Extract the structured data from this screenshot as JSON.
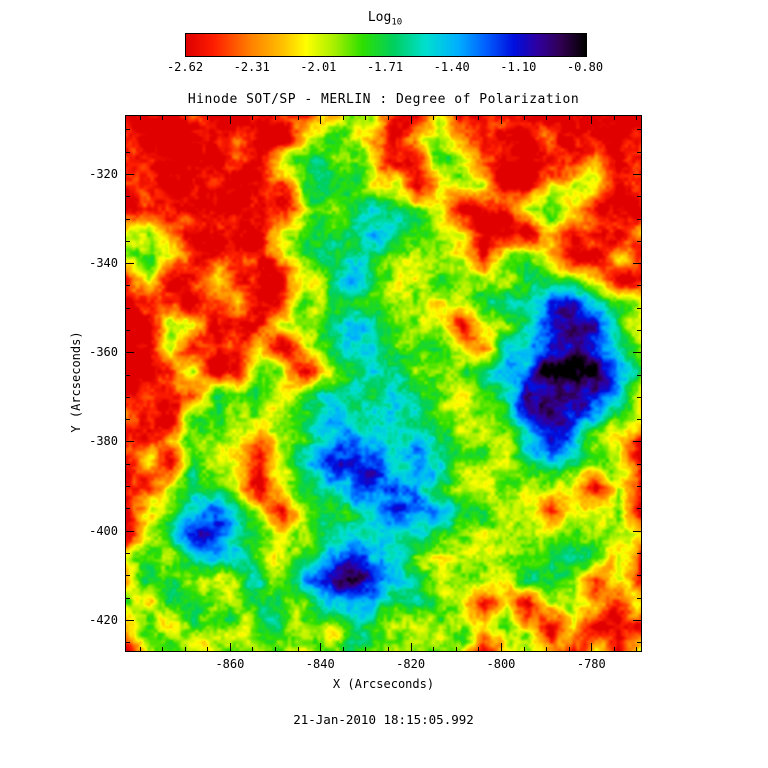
{
  "chart_data": {
    "type": "heatmap",
    "title": "Hinode SOT/SP - MERLIN : Degree of Polarization",
    "xlabel": "X (Arcseconds)",
    "ylabel": "Y (Arcseconds)",
    "timestamp": "21-Jan-2010 18:15:05.992",
    "colorbar": {
      "title_main": "Log",
      "title_sub": "10",
      "min": -2.62,
      "max": -0.8,
      "tick_labels": [
        "-2.62",
        "-2.31",
        "-2.01",
        "-1.71",
        "-1.40",
        "-1.10",
        "-0.80"
      ]
    },
    "x_range": [
      -883,
      -769
    ],
    "y_range": [
      -307,
      -427
    ],
    "x_ticks": [
      -860,
      -840,
      -820,
      -800,
      -780
    ],
    "y_ticks": [
      -320,
      -340,
      -360,
      -380,
      -400,
      -420
    ],
    "minor_tick_step": 5,
    "grid_on": false,
    "colormap_stops": [
      [
        0.0,
        "#e00000"
      ],
      [
        0.07,
        "#ff2000"
      ],
      [
        0.16,
        "#ff8000"
      ],
      [
        0.24,
        "#ffc000"
      ],
      [
        0.3,
        "#ffff00"
      ],
      [
        0.37,
        "#a8f000"
      ],
      [
        0.44,
        "#30e000"
      ],
      [
        0.52,
        "#00d060"
      ],
      [
        0.6,
        "#00e0d0"
      ],
      [
        0.68,
        "#00b0ff"
      ],
      [
        0.75,
        "#0060ff"
      ],
      [
        0.82,
        "#0010e0"
      ],
      [
        0.88,
        "#3000a0"
      ],
      [
        0.94,
        "#300050"
      ],
      [
        1.0,
        "#000000"
      ]
    ],
    "values_log10": [
      [
        -2.58,
        -2.58,
        -2.58,
        -2.58,
        -2.58,
        -2.58,
        -2.58,
        -2.58,
        -2.58,
        -2.05,
        -1.85,
        -2.05,
        -2.58,
        -2.58,
        -2.05,
        -2.58,
        -2.58,
        -2.58,
        -2.58,
        -2.58,
        -2.58,
        -2.58,
        -2.58,
        -2.58
      ],
      [
        -2.58,
        -2.58,
        -2.58,
        -2.58,
        -2.58,
        -2.25,
        -2.58,
        -2.58,
        -2.05,
        -1.85,
        -1.85,
        -2.05,
        -2.58,
        -2.05,
        -1.85,
        -2.05,
        -2.58,
        -2.58,
        -2.58,
        -2.58,
        -2.58,
        -2.58,
        -2.58,
        -2.58
      ],
      [
        -2.58,
        -2.58,
        -2.58,
        -2.58,
        -2.58,
        -2.58,
        -2.58,
        -2.05,
        -1.85,
        -1.65,
        -1.85,
        -2.05,
        -2.58,
        -2.58,
        -1.85,
        -1.85,
        -2.58,
        -2.58,
        -2.58,
        -2.58,
        -2.58,
        -2.05,
        -2.58,
        -2.58
      ],
      [
        -2.58,
        -2.58,
        -2.58,
        -2.58,
        -2.58,
        -2.58,
        -2.58,
        -2.58,
        -1.85,
        -1.65,
        -1.85,
        -2.05,
        -2.05,
        -2.58,
        -2.05,
        -1.85,
        -2.05,
        -2.58,
        -2.58,
        -2.05,
        -1.85,
        -2.05,
        -2.58,
        -2.58
      ],
      [
        -2.58,
        -2.58,
        -2.58,
        -2.58,
        -2.58,
        -2.58,
        -2.58,
        -2.58,
        -2.05,
        -1.85,
        -1.65,
        -1.45,
        -1.65,
        -1.85,
        -2.05,
        -2.58,
        -2.58,
        -2.58,
        -2.05,
        -1.85,
        -2.05,
        -2.58,
        -2.58,
        -2.58
      ],
      [
        -2.05,
        -1.85,
        -2.58,
        -2.58,
        -2.58,
        -2.58,
        -2.58,
        -2.05,
        -1.85,
        -1.85,
        -1.65,
        -1.45,
        -1.65,
        -1.85,
        -1.85,
        -2.05,
        -2.58,
        -2.58,
        -2.58,
        -2.05,
        -2.58,
        -2.58,
        -2.58,
        -2.05
      ],
      [
        -1.85,
        -1.85,
        -2.05,
        -2.58,
        -2.58,
        -2.58,
        -2.58,
        -2.05,
        -1.85,
        -1.65,
        -1.65,
        -1.65,
        -1.85,
        -1.85,
        -1.85,
        -2.05,
        -2.58,
        -2.05,
        -1.85,
        -2.05,
        -2.58,
        -2.58,
        -2.05,
        -2.58
      ],
      [
        -2.58,
        -2.05,
        -2.58,
        -2.58,
        -2.05,
        -2.58,
        -2.58,
        -2.58,
        -2.05,
        -1.85,
        -1.45,
        -1.65,
        -1.85,
        -2.05,
        -1.85,
        -1.85,
        -2.05,
        -1.85,
        -1.65,
        -1.65,
        -1.85,
        -2.05,
        -2.58,
        -2.58
      ],
      [
        -2.58,
        -2.58,
        -2.58,
        -2.58,
        -2.58,
        -2.05,
        -2.58,
        -2.58,
        -1.85,
        -1.85,
        -1.65,
        -1.85,
        -2.05,
        -1.85,
        -2.05,
        -2.05,
        -1.85,
        -1.65,
        -1.45,
        -1.15,
        -1.15,
        -1.45,
        -1.85,
        -2.05
      ],
      [
        -2.58,
        -2.58,
        -2.05,
        -2.05,
        -2.58,
        -2.58,
        -2.58,
        -2.05,
        -1.85,
        -1.65,
        -1.45,
        -1.65,
        -1.85,
        -1.85,
        -2.05,
        -2.58,
        -2.05,
        -1.85,
        -1.45,
        -1.15,
        -0.95,
        -1.15,
        -1.65,
        -2.05
      ],
      [
        -2.58,
        -2.58,
        -2.05,
        -2.58,
        -2.58,
        -2.58,
        -2.05,
        -2.58,
        -2.05,
        -1.65,
        -1.45,
        -1.45,
        -1.65,
        -1.85,
        -1.85,
        -2.05,
        -2.58,
        -1.65,
        -1.45,
        -0.95,
        -0.85,
        -1.15,
        -1.45,
        -1.85
      ],
      [
        -2.58,
        -2.58,
        -2.58,
        -2.05,
        -2.58,
        -2.58,
        -1.85,
        -2.05,
        -2.58,
        -2.05,
        -1.65,
        -1.45,
        -1.65,
        -1.85,
        -2.05,
        -1.85,
        -1.65,
        -1.45,
        -1.15,
        -0.85,
        -0.85,
        -0.95,
        -1.45,
        -1.85
      ],
      [
        -2.58,
        -2.58,
        -2.58,
        -2.58,
        -1.85,
        -2.05,
        -1.85,
        -2.05,
        -1.65,
        -1.45,
        -1.65,
        -1.65,
        -1.45,
        -1.65,
        -1.85,
        -2.05,
        -1.85,
        -1.65,
        -0.95,
        -0.85,
        -0.95,
        -1.15,
        -1.45,
        -2.05
      ],
      [
        -2.58,
        -2.58,
        -2.58,
        -1.85,
        -1.85,
        -2.05,
        -2.05,
        -1.85,
        -1.65,
        -1.45,
        -1.45,
        -1.65,
        -1.45,
        -1.65,
        -1.85,
        -1.85,
        -2.05,
        -1.65,
        -1.15,
        -0.95,
        -1.15,
        -1.45,
        -1.85,
        -2.05
      ],
      [
        -2.58,
        -2.58,
        -2.05,
        -1.85,
        -1.85,
        -2.05,
        -2.58,
        -2.05,
        -1.85,
        -1.45,
        -1.15,
        -1.45,
        -1.65,
        -1.45,
        -1.65,
        -1.85,
        -2.05,
        -1.85,
        -1.45,
        -1.15,
        -1.45,
        -1.85,
        -2.05,
        -2.58
      ],
      [
        -2.58,
        -2.05,
        -2.58,
        -1.85,
        -1.85,
        -2.05,
        -2.58,
        -2.05,
        -1.45,
        -1.15,
        -1.15,
        -1.15,
        -1.45,
        -1.45,
        -1.65,
        -1.85,
        -1.85,
        -2.05,
        -1.65,
        -1.45,
        -1.65,
        -1.85,
        -2.05,
        -2.58
      ],
      [
        -2.58,
        -2.58,
        -2.05,
        -1.65,
        -1.65,
        -2.05,
        -2.58,
        -2.05,
        -1.65,
        -1.45,
        -1.45,
        -1.15,
        -1.15,
        -1.45,
        -1.65,
        -1.85,
        -2.05,
        -1.85,
        -1.85,
        -1.85,
        -2.05,
        -2.58,
        -2.05,
        -2.58
      ],
      [
        -2.58,
        -2.05,
        -1.85,
        -1.45,
        -1.15,
        -1.65,
        -2.05,
        -2.58,
        -1.85,
        -1.65,
        -1.65,
        -1.45,
        -1.15,
        -1.15,
        -1.45,
        -1.65,
        -1.85,
        -1.85,
        -2.05,
        -2.58,
        -2.05,
        -2.05,
        -1.85,
        -2.58
      ],
      [
        -2.58,
        -2.05,
        -1.45,
        -1.15,
        -1.15,
        -1.45,
        -1.65,
        -2.05,
        -2.05,
        -1.65,
        -1.65,
        -1.65,
        -1.45,
        -1.45,
        -1.65,
        -1.85,
        -2.05,
        -1.85,
        -2.05,
        -1.85,
        -1.65,
        -1.85,
        -1.85,
        -2.05
      ],
      [
        -2.05,
        -1.85,
        -1.85,
        -1.45,
        -1.45,
        -1.65,
        -1.85,
        -2.05,
        -1.85,
        -1.45,
        -1.15,
        -1.45,
        -1.65,
        -1.85,
        -2.05,
        -1.85,
        -2.05,
        -2.05,
        -1.85,
        -1.65,
        -1.65,
        -1.85,
        -2.05,
        -2.58
      ],
      [
        -2.05,
        -1.85,
        -1.65,
        -1.85,
        -2.05,
        -1.85,
        -1.65,
        -1.85,
        -1.45,
        -1.15,
        -0.95,
        -1.15,
        -1.45,
        -1.65,
        -2.05,
        -2.05,
        -1.85,
        -2.05,
        -1.85,
        -1.85,
        -2.05,
        -2.58,
        -2.05,
        -2.58
      ],
      [
        -1.85,
        -2.05,
        -1.85,
        -1.65,
        -1.85,
        -1.85,
        -1.65,
        -1.65,
        -1.85,
        -1.45,
        -1.45,
        -1.45,
        -1.85,
        -1.65,
        -1.85,
        -2.05,
        -2.58,
        -2.05,
        -2.58,
        -2.05,
        -1.85,
        -2.05,
        -2.58,
        -2.05
      ],
      [
        -2.05,
        -1.85,
        -2.05,
        -1.85,
        -1.85,
        -2.05,
        -1.65,
        -1.85,
        -1.85,
        -2.05,
        -1.85,
        -1.65,
        -1.85,
        -1.85,
        -2.05,
        -1.85,
        -2.05,
        -1.85,
        -2.05,
        -2.58,
        -2.05,
        -2.58,
        -2.58,
        -2.58
      ],
      [
        -2.58,
        -2.05,
        -1.85,
        -2.05,
        -1.85,
        -1.85,
        -2.05,
        -1.85,
        -2.05,
        -1.85,
        -1.65,
        -1.85,
        -2.05,
        -1.85,
        -1.85,
        -2.05,
        -2.58,
        -2.05,
        -1.85,
        -2.05,
        -2.58,
        -2.05,
        -2.58,
        -2.05
      ]
    ]
  }
}
